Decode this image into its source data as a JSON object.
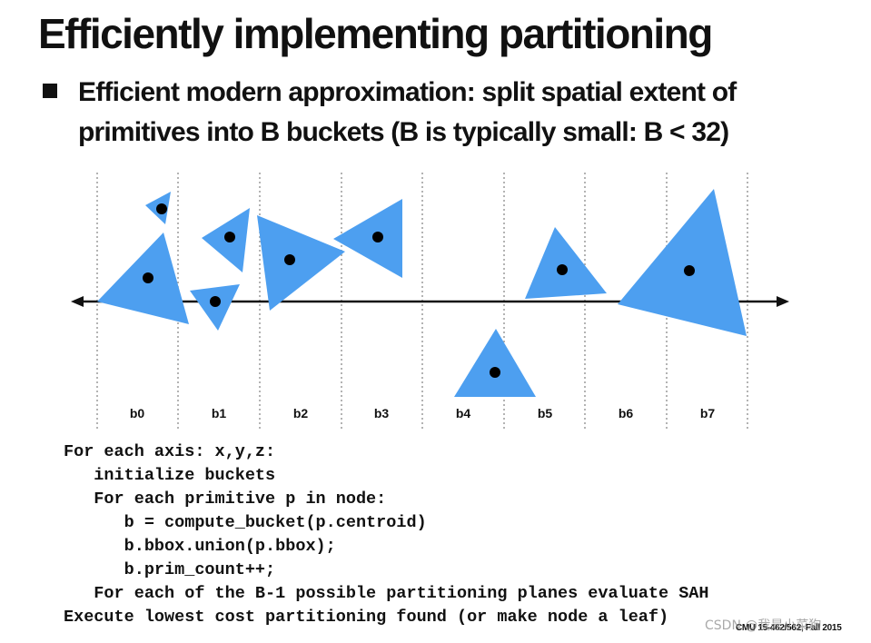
{
  "slide": {
    "title": "Efficiently implementing partitioning",
    "bullet_line1": "Efficient modern approximation: split spatial extent of",
    "bullet_line2": "primitives into B buckets (B is typically small: B < 32)",
    "footer": "CMU 15-462/562, Fall 2015",
    "watermark": "CSDN @我是小菜狗"
  },
  "colors": {
    "triangle_fill": "#4d9ff0",
    "centroid": "#000000",
    "axis": "#111111",
    "divider": "#9a9a9a"
  },
  "diagram": {
    "buckets": [
      "b0",
      "b1",
      "b2",
      "b3",
      "b4",
      "b5",
      "b6",
      "b7"
    ]
  },
  "code": {
    "lines": [
      "For each axis: x,y,z:",
      "   initialize buckets",
      "   For each primitive p in node:",
      "      b = compute_bucket(p.centroid)",
      "      b.bbox.union(p.bbox);",
      "      b.prim_count++;",
      "   For each of the B-1 possible partitioning planes evaluate SAH",
      "Execute lowest cost partitioning found (or make node a leaf)"
    ]
  }
}
